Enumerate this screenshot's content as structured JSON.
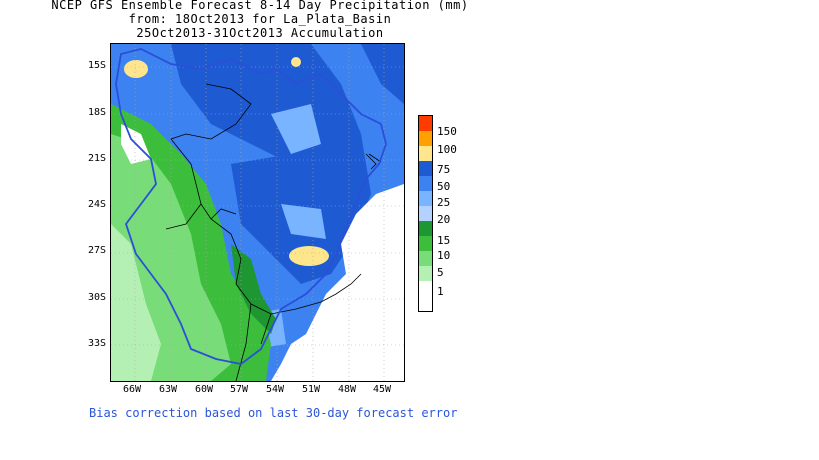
{
  "title": {
    "line1": "NCEP GFS Ensemble Forecast 8-14 Day Precipitation (mm)",
    "line2": "from: 18Oct2013   for La_Plata_Basin",
    "line3": "25Oct2013-31Oct2013 Accumulation"
  },
  "axes": {
    "lat_labels": [
      "15S",
      "18S",
      "21S",
      "24S",
      "27S",
      "30S",
      "33S"
    ],
    "lon_labels": [
      "66W",
      "63W",
      "60W",
      "57W",
      "54W",
      "51W",
      "48W",
      "45W"
    ]
  },
  "legend": {
    "levels": [
      "1",
      "5",
      "10",
      "15",
      "20",
      "25",
      "50",
      "75",
      "100",
      "150"
    ],
    "colors": [
      "#ffffff",
      "#b4f0b4",
      "#78dc78",
      "#3cbe3c",
      "#1e9632",
      "#b4d2ff",
      "#78b4ff",
      "#3c82f0",
      "#1e5ad2",
      "#ffe68c",
      "#ffa000",
      "#ff3c00"
    ]
  },
  "footnote": "Bias correction based on last 30-day forecast error"
}
